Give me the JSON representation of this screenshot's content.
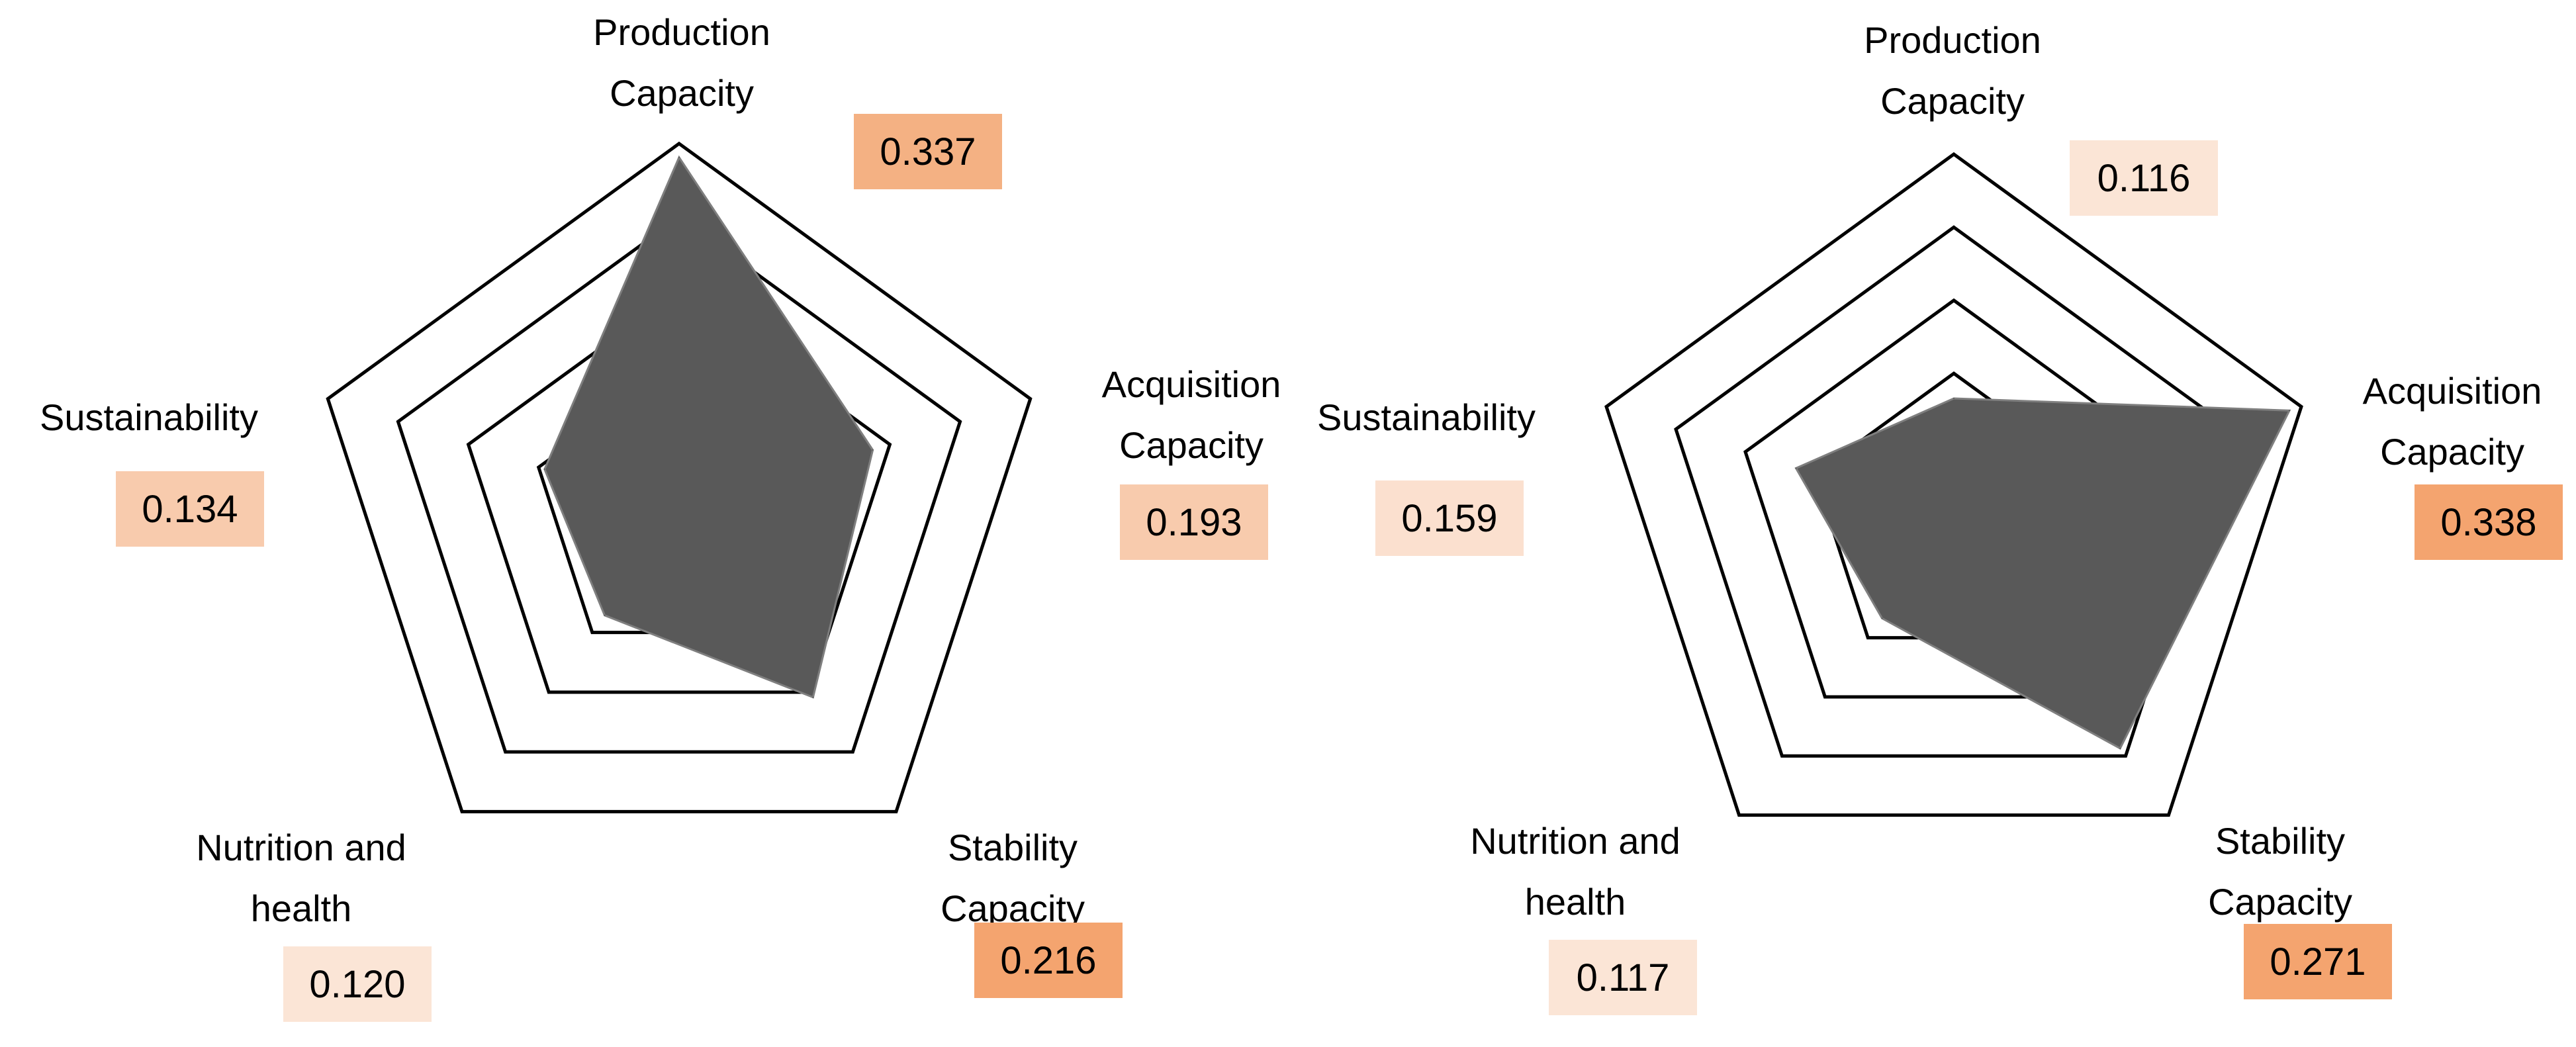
{
  "chart_data": [
    {
      "type": "radar",
      "axes": [
        {
          "label": [
            "Production",
            "Capacity"
          ],
          "value": 0.337,
          "value_label": "0.337",
          "box_color": "#F4B183"
        },
        {
          "label": [
            "Acquisition",
            "Capacity"
          ],
          "value": 0.193,
          "value_label": "0.193",
          "box_color": "#F8CBAD"
        },
        {
          "label": [
            "Stability",
            "Capacity"
          ],
          "value": 0.216,
          "value_label": "0.216",
          "box_color": "#F4A46F"
        },
        {
          "label": [
            "Nutrition and",
            "health"
          ],
          "value": 0.12,
          "value_label": "0.120",
          "box_color": "#FBE5D6"
        },
        {
          "label": [
            "Sustainability"
          ],
          "value": 0.134,
          "value_label": "0.134",
          "box_color": "#F8CBAD"
        }
      ],
      "rmax": 0.35,
      "rings": 5,
      "fill_color": "#595959",
      "grid_color": "#000000"
    },
    {
      "type": "radar",
      "axes": [
        {
          "label": [
            "Production",
            "Capacity"
          ],
          "value": 0.116,
          "value_label": "0.116",
          "box_color": "#FBE5D6"
        },
        {
          "label": [
            "Acquisition",
            "Capacity"
          ],
          "value": 0.338,
          "value_label": "0.338",
          "box_color": "#F4A46F"
        },
        {
          "label": [
            "Stability",
            "Capacity"
          ],
          "value": 0.271,
          "value_label": "0.271",
          "box_color": "#F4A46F"
        },
        {
          "label": [
            "Nutrition and",
            "health"
          ],
          "value": 0.117,
          "value_label": "0.117",
          "box_color": "#FBE5D6"
        },
        {
          "label": [
            "Sustainability"
          ],
          "value": 0.159,
          "value_label": "0.159",
          "box_color": "#FBE0CF"
        }
      ],
      "rmax": 0.35,
      "rings": 5,
      "fill_color": "#595959",
      "grid_color": "#000000"
    }
  ]
}
